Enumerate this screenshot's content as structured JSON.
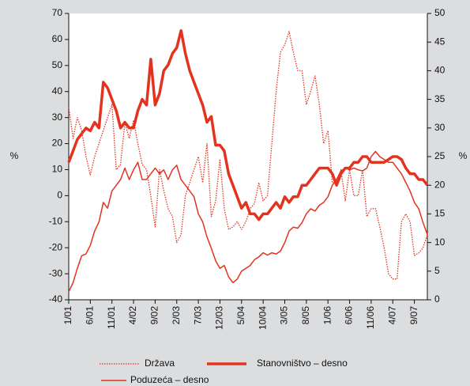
{
  "chart_data": {
    "type": "line",
    "categories": [
      "1/01",
      null,
      null,
      null,
      null,
      "6/01",
      null,
      null,
      null,
      null,
      "11/01",
      null,
      null,
      null,
      null,
      "4/02",
      null,
      null,
      null,
      null,
      "9/02",
      null,
      null,
      null,
      null,
      "2/03",
      null,
      null,
      null,
      null,
      "7/03",
      null,
      null,
      null,
      null,
      "12/03",
      null,
      null,
      null,
      null,
      "5/04",
      null,
      null,
      null,
      null,
      "10/04",
      null,
      null,
      null,
      null,
      "3/05",
      null,
      null,
      null,
      null,
      "8/05",
      null,
      null,
      null,
      null,
      "1/06",
      null,
      null,
      null,
      null,
      "6/06",
      null,
      null,
      null,
      null,
      "11/06",
      null,
      null,
      null,
      null,
      "4/07",
      null,
      null,
      null,
      null,
      "9/07",
      null,
      null,
      null
    ],
    "series": [
      {
        "name": "Država",
        "color": "#e3331f",
        "style": "dotted",
        "axis": "y",
        "values": [
          34,
          22,
          30,
          25,
          15,
          8,
          15,
          20,
          25,
          30,
          35,
          10,
          12,
          28,
          22,
          29,
          20,
          12,
          10,
          0,
          -12,
          10,
          2,
          -5,
          -8,
          -18,
          -15,
          0,
          5,
          10,
          15,
          5,
          20,
          -8,
          -2,
          14,
          -5,
          -13,
          -12,
          -10,
          -13,
          -10,
          -5,
          -3,
          5,
          -2,
          0,
          20,
          40,
          55,
          58,
          63,
          55,
          48,
          48,
          35,
          40,
          46,
          35,
          20,
          25,
          5,
          5,
          10,
          -2,
          10,
          0,
          0,
          10,
          -8,
          -5,
          -5,
          -12,
          -20,
          -30,
          -32,
          -32,
          -10,
          -7,
          -10,
          -23,
          -22,
          -20,
          -15
        ]
      },
      {
        "name": "Stanovništvo – desno",
        "color": "#e3331f",
        "style": "thick",
        "axis": "y2",
        "values": [
          24,
          26,
          28,
          29,
          30,
          29.5,
          31,
          30,
          38,
          37,
          35,
          33,
          30,
          31,
          30,
          30,
          33,
          35,
          34,
          42,
          34,
          36,
          40,
          41,
          43,
          44,
          47,
          43,
          40,
          38,
          36,
          34,
          31,
          32,
          27,
          27,
          26,
          22,
          20,
          18,
          16,
          17,
          15,
          15,
          14,
          15,
          15,
          16,
          17,
          16,
          18,
          17,
          18,
          18,
          20,
          20,
          21,
          22,
          23,
          23,
          23,
          22,
          20,
          22,
          23,
          23,
          24,
          24,
          25,
          25,
          24,
          24,
          24,
          24,
          24.5,
          25,
          25,
          24.5,
          23,
          22,
          22,
          21,
          21,
          20
        ]
      },
      {
        "name": "Poduzeća – desno",
        "color": "#e3331f",
        "style": "thin",
        "axis": "y2",
        "values": [
          1.4,
          3,
          5.5,
          7.7,
          8,
          9.5,
          12,
          13.6,
          17,
          16,
          19,
          20,
          21,
          23,
          21,
          22.7,
          24,
          21,
          21,
          22,
          23,
          22,
          22.7,
          21,
          22.7,
          23.5,
          21,
          20,
          19,
          18,
          15,
          13.6,
          11,
          9,
          6.8,
          5.5,
          6,
          4,
          3,
          3.6,
          5,
          5.5,
          6,
          7,
          7.5,
          8.2,
          7.8,
          8.2,
          8,
          8.5,
          10,
          12,
          12.7,
          12.5,
          13.5,
          15,
          15.9,
          15.5,
          16.5,
          17,
          18,
          20,
          21,
          22.5,
          23,
          22.7,
          23,
          22.7,
          22.5,
          23,
          25,
          25.9,
          25,
          24.5,
          24,
          24,
          23,
          22,
          20.5,
          19,
          17,
          15.9,
          13.5,
          11.4
        ]
      }
    ],
    "ylabel": "%",
    "y2label": "%",
    "ylim": [
      -40,
      70
    ],
    "yticks": [
      -40,
      -30,
      -20,
      -10,
      0,
      10,
      20,
      30,
      40,
      50,
      60,
      70
    ],
    "y2lim": [
      0,
      50
    ],
    "y2ticks": [
      0,
      5,
      10,
      15,
      20,
      25,
      30,
      35,
      40,
      45,
      50
    ]
  }
}
